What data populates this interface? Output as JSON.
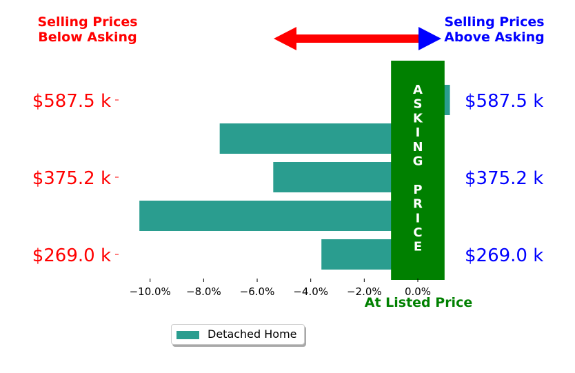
{
  "header": {
    "left_line1": "Selling Prices",
    "left_line2": "Below Asking",
    "right_line1": "Selling Prices",
    "right_line2": "Above Asking"
  },
  "asking_band": {
    "letters": [
      "A",
      "S",
      "K",
      "I",
      "N",
      "G",
      "",
      "P",
      "R",
      "I",
      "C",
      "E"
    ],
    "bottom_label": "At Listed Price"
  },
  "colors": {
    "bar": "#2a9d8f",
    "band": "#008000",
    "left_text": "#ff0000",
    "right_text": "#0000ff",
    "left_arrow": "#ff0000",
    "right_arrow": "#0000ff"
  },
  "legend": {
    "label": "Detached Home"
  },
  "chart_data": {
    "type": "bar",
    "orientation": "horizontal",
    "series": [
      {
        "name": "Detached Home",
        "values": [
          -3.6,
          -10.4,
          -5.4,
          -7.4,
          1.2
        ]
      }
    ],
    "price_tick_labels": [
      "$269.0 k",
      "$375.2 k",
      "$587.5 k"
    ],
    "price_tick_rows": [
      0,
      2,
      4
    ],
    "xticks": [
      -10,
      -8,
      -6,
      -4,
      -2,
      0
    ],
    "xtick_labels": [
      "−10.0%",
      "−8.0%",
      "−6.0%",
      "−4.0%",
      "−2.0%",
      "0.0%"
    ],
    "xlim": [
      -11.1,
      1.7
    ],
    "asking_band_range": [
      -1.0,
      1.0
    ],
    "legend_position": "bottom-center",
    "grid": false
  }
}
